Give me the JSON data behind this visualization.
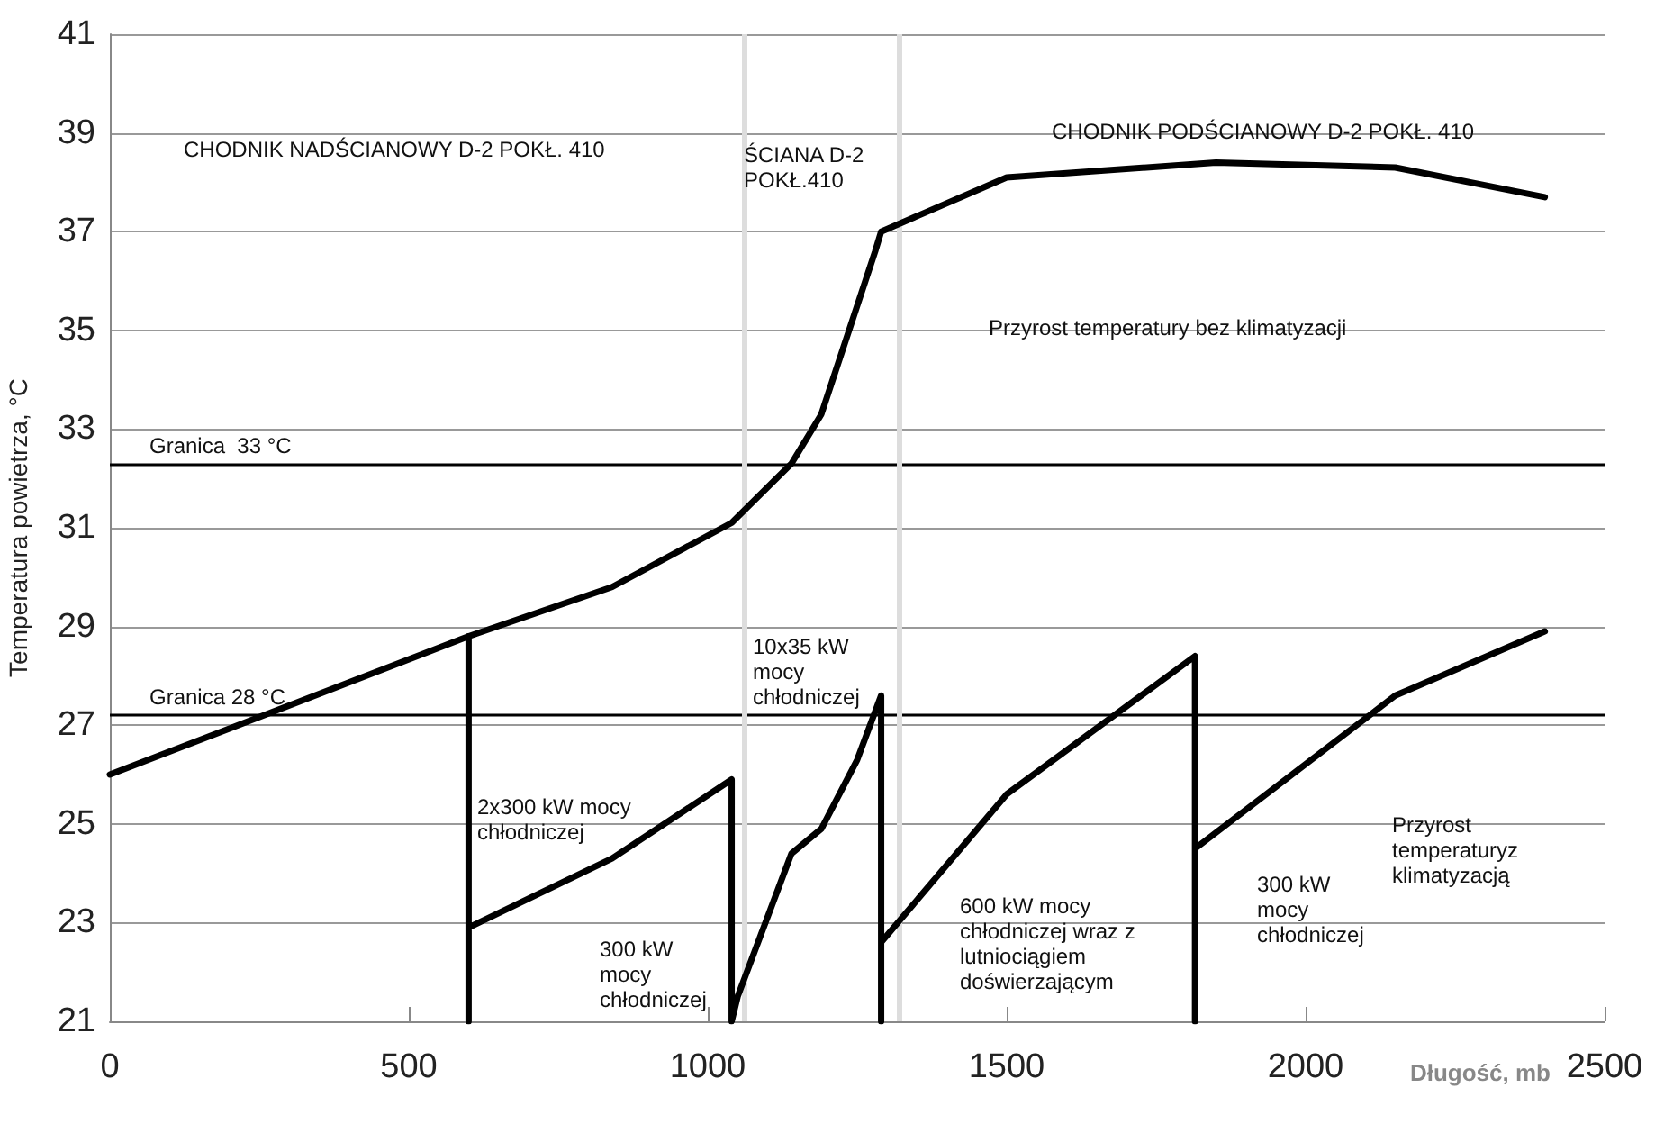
{
  "chart_data": {
    "type": "line",
    "xlabel": "Długość, mb",
    "ylabel": "Temperatura powietrza, °C",
    "xlim": [
      0,
      2500
    ],
    "xticks": [
      0,
      500,
      1000,
      1500,
      2000,
      2500
    ],
    "ylim": [
      21,
      41
    ],
    "yticks": [
      21,
      23,
      25,
      27,
      29,
      31,
      33,
      35,
      37,
      39,
      41
    ],
    "grid": "y",
    "marker": "none",
    "line_style": "solid",
    "series": [
      {
        "color": "#000000",
        "x": [
          0,
          600,
          840,
          1040,
          1140,
          1190,
          1280,
          1290,
          1500,
          1850,
          2150,
          2400
        ],
        "values": [
          26,
          28.8,
          29.8,
          31.1,
          32.3,
          33.3,
          36.6,
          37.0,
          38.1,
          38.4,
          38.3,
          37.7
        ]
      },
      {
        "color": "#000000",
        "x": [
          600,
          600,
          600,
          840,
          1040,
          1040,
          1050,
          1140,
          1190,
          1250,
          1290,
          1290,
          1290,
          1500,
          1815,
          1815,
          1815,
          2150,
          2400
        ],
        "values": [
          28.8,
          21,
          22.9,
          24.3,
          25.9,
          21,
          21.5,
          24.4,
          24.9,
          26.3,
          27.6,
          21,
          22.6,
          25.6,
          28.4,
          21,
          24.5,
          27.6,
          28.9
        ]
      }
    ],
    "ref_lines": [
      {
        "axis": "y",
        "value": 32.3,
        "color": "#000000",
        "label": "Granica  33 °C"
      },
      {
        "axis": "y",
        "value": 27.2,
        "color": "#000000",
        "label": "Granica 28 °C"
      },
      {
        "axis": "x",
        "value": 1060,
        "color": "#dddddd"
      },
      {
        "axis": "x",
        "value": 1320,
        "color": "#dddddd"
      }
    ],
    "annotations": [
      "CHODNIK NADŚCIANOWY D-2 POKŁ. 410",
      "ŚCIANA D-2\nPOKŁ.410",
      "CHODNIK PODŚCIANOWY D-2 POKŁ. 410",
      "Przyrost temperatury bez klimatyzacji",
      "2x300 kW mocy\nchłodniczej",
      "300 kW\nmocy\nchłodniczej",
      "10x35 kW\nmocy\nchłodniczej",
      "600 kW mocy\nchłodniczej wraz z\nlutniociągiem\ndoświerzającym",
      "300 kW\nmocy\nchłodniczej",
      "Przyrost\ntemperaturyz\nklimatyzacją"
    ]
  }
}
